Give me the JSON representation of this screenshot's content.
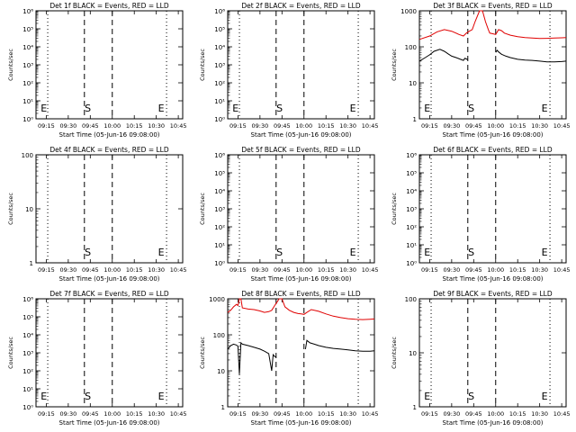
{
  "page": {
    "x_tick_labels": [
      "09:15",
      "09:30",
      "09:45",
      "10:00",
      "10:15",
      "10:30",
      "10:45"
    ],
    "colors": {
      "events": "#000000",
      "lld": "#e00000",
      "axes": "#000000",
      "background": "#ffffff"
    }
  },
  "chart_data": [
    {
      "type": "line",
      "title": "Det 1f BLACK = Events, RED = LLD",
      "xlabel": "Start Time (05-Jun-16 09:08:00)",
      "ylabel": "Counts/sec",
      "yscale": "log",
      "ylim": [
        1,
        1000000
      ],
      "xlim": [
        "09:08",
        "10:48"
      ],
      "yticks": [
        "10⁰",
        "10¹",
        "10²",
        "10³",
        "10⁴",
        "10⁵",
        "10⁶"
      ],
      "annotations": [
        "E",
        "S",
        "E"
      ],
      "series": []
    },
    {
      "type": "line",
      "title": "Det 2f BLACK = Events, RED = LLD",
      "xlabel": "Start Time (05-Jun-16 09:08:00)",
      "ylabel": "Counts/sec",
      "yscale": "log",
      "ylim": [
        1,
        1000000
      ],
      "xlim": [
        "09:08",
        "10:48"
      ],
      "yticks": [
        "10⁰",
        "10¹",
        "10²",
        "10³",
        "10⁴",
        "10⁵",
        "10⁶"
      ],
      "annotations": [
        "E",
        "S",
        "E"
      ],
      "series": []
    },
    {
      "type": "line",
      "title": "Det 3f BLACK = Events, RED = LLD",
      "xlabel": "Start Time (05-Jun-16 09:08:00)",
      "ylabel": "Counts/sec",
      "yscale": "log",
      "ylim": [
        1,
        1000
      ],
      "xlim": [
        "09:08",
        "10:48"
      ],
      "yticks": [
        "1",
        "10",
        "100",
        "1000"
      ],
      "annotations": [
        "E",
        "S",
        "E"
      ],
      "series": [
        {
          "color": "#e00000",
          "x": [
            "09:08",
            "09:15",
            "09:20",
            "09:25",
            "09:30",
            "09:35",
            "09:38",
            "09:40",
            "09:42",
            "09:44",
            "09:46",
            "09:49",
            "09:51",
            "09:53",
            "09:55",
            "09:56",
            "09:58",
            "10:00",
            "10:02",
            "10:04",
            "10:06",
            "10:10",
            "10:15",
            "10:20",
            "10:25",
            "10:30",
            "10:35",
            "10:40",
            "10:45",
            "10:48"
          ],
          "y": [
            160,
            200,
            260,
            300,
            270,
            220,
            200,
            240,
            270,
            300,
            500,
            1000,
            1000,
            500,
            300,
            240,
            230,
            220,
            300,
            280,
            240,
            210,
            190,
            180,
            175,
            170,
            172,
            175,
            178,
            180
          ]
        },
        {
          "color": "#000000",
          "x": [
            "09:08",
            "09:12",
            "09:15",
            "09:18",
            "09:22",
            "09:25",
            "09:28",
            "09:30",
            "09:33",
            "09:36",
            "09:38",
            "09:39",
            "09:40",
            "09:41",
            "09:59",
            "10:00",
            "10:01",
            "10:02",
            "10:04",
            "10:07",
            "10:10",
            "10:15",
            "10:20",
            "10:25",
            "10:30",
            "10:35",
            "10:40",
            "10:45",
            "10:48"
          ],
          "y": [
            40,
            50,
            60,
            75,
            85,
            75,
            62,
            55,
            50,
            45,
            42,
            48,
            46,
            44,
            null,
            70,
            80,
            72,
            62,
            55,
            50,
            45,
            43,
            42,
            40,
            38,
            38,
            39,
            40
          ]
        }
      ]
    },
    {
      "type": "line",
      "title": "Det 4f BLACK = Events, RED = LLD",
      "xlabel": "Start Time (05-Jun-16 09:08:00)",
      "ylabel": "Counts/sec",
      "yscale": "log",
      "ylim": [
        1,
        100
      ],
      "xlim": [
        "09:08",
        "10:48"
      ],
      "yticks": [
        "1",
        "10",
        "100"
      ],
      "annotations": [
        "S",
        "E"
      ],
      "series": []
    },
    {
      "type": "line",
      "title": "Det 5f BLACK = Events, RED = LLD",
      "xlabel": "Start Time (05-Jun-16 09:08:00)",
      "ylabel": "Counts/sec",
      "yscale": "log",
      "ylim": [
        1,
        1000000
      ],
      "xlim": [
        "09:08",
        "10:48"
      ],
      "yticks": [
        "10⁰",
        "10¹",
        "10²",
        "10³",
        "10⁴",
        "10⁵",
        "10⁶"
      ],
      "annotations": [
        "S",
        "E"
      ],
      "series": []
    },
    {
      "type": "line",
      "title": "Det 6f BLACK = Events, RED = LLD",
      "xlabel": "Start Time (05-Jun-16 09:08:00)",
      "ylabel": "Counts/sec",
      "yscale": "log",
      "ylim": [
        1,
        1000000
      ],
      "xlim": [
        "09:08",
        "10:48"
      ],
      "yticks": [
        "10⁰",
        "10¹",
        "10²",
        "10³",
        "10⁴",
        "10⁵",
        "10⁶"
      ],
      "annotations": [
        "E",
        "S",
        "E"
      ],
      "series": []
    },
    {
      "type": "line",
      "title": "Det 7f BLACK = Events, RED = LLD",
      "xlabel": "Start Time (05-Jun-16 09:08:00)",
      "ylabel": "Counts/sec",
      "yscale": "log",
      "ylim": [
        1,
        1000000
      ],
      "xlim": [
        "09:08",
        "10:48"
      ],
      "yticks": [
        "10⁰",
        "10¹",
        "10²",
        "10³",
        "10⁴",
        "10⁵",
        "10⁶"
      ],
      "annotations": [
        "E",
        "S",
        "E"
      ],
      "series": []
    },
    {
      "type": "line",
      "title": "Det 8f BLACK = Events, RED = LLD",
      "xlabel": "Start Time (05-Jun-16 09:08:00)",
      "ylabel": "Counts/sec",
      "yscale": "log",
      "ylim": [
        1,
        1000
      ],
      "xlim": [
        "09:08",
        "10:48"
      ],
      "yticks": [
        "1",
        "10",
        "100",
        "1000"
      ],
      "annotations": [],
      "series": [
        {
          "color": "#e00000",
          "x": [
            "09:08",
            "09:10",
            "09:12",
            "09:14",
            "09:15",
            "09:16",
            "09:17",
            "09:18",
            "09:22",
            "09:26",
            "09:30",
            "09:33",
            "09:36",
            "09:38",
            "09:40",
            "09:42",
            "09:43",
            "09:44",
            "09:45",
            "09:47",
            "09:50",
            "09:53",
            "09:56",
            "09:58",
            "10:00",
            "10:02",
            "10:05",
            "10:10",
            "10:15",
            "10:20",
            "10:25",
            "10:30",
            "10:35",
            "10:40",
            "10:45",
            "10:48"
          ],
          "y": [
            420,
            480,
            600,
            700,
            650,
            1000,
            1000,
            560,
            520,
            500,
            460,
            420,
            440,
            480,
            650,
            850,
            1000,
            1000,
            1000,
            600,
            480,
            420,
            390,
            380,
            370,
            420,
            500,
            450,
            380,
            330,
            300,
            280,
            270,
            265,
            270,
            275
          ]
        },
        {
          "color": "#000000",
          "x": [
            "09:08",
            "09:10",
            "09:12",
            "09:14",
            "09:15",
            "09:16",
            "09:17",
            "09:18",
            "09:22",
            "09:26",
            "09:30",
            "09:33",
            "09:36",
            "09:38",
            "09:39",
            "09:40",
            "09:41",
            "10:00",
            "10:01",
            "10:02",
            "10:04",
            "10:07",
            "10:10",
            "10:15",
            "10:20",
            "10:25",
            "10:30",
            "10:35",
            "10:40",
            "10:45",
            "10:48"
          ],
          "y": [
            40,
            50,
            55,
            52,
            48,
            8,
            60,
            55,
            50,
            45,
            40,
            35,
            30,
            10,
            28,
            25,
            24,
            null,
            40,
            70,
            60,
            55,
            50,
            45,
            42,
            40,
            38,
            36,
            35,
            35,
            36
          ]
        }
      ]
    },
    {
      "type": "line",
      "title": "Det 9f BLACK = Events, RED = LLD",
      "xlabel": "Start Time (05-Jun-16 09:08:00)",
      "ylabel": "Counts/sec",
      "yscale": "log",
      "ylim": [
        1,
        100
      ],
      "xlim": [
        "09:08",
        "10:48"
      ],
      "yticks": [
        "1",
        "10",
        "100"
      ],
      "annotations": [
        "E",
        "S",
        "E"
      ],
      "series": []
    }
  ]
}
